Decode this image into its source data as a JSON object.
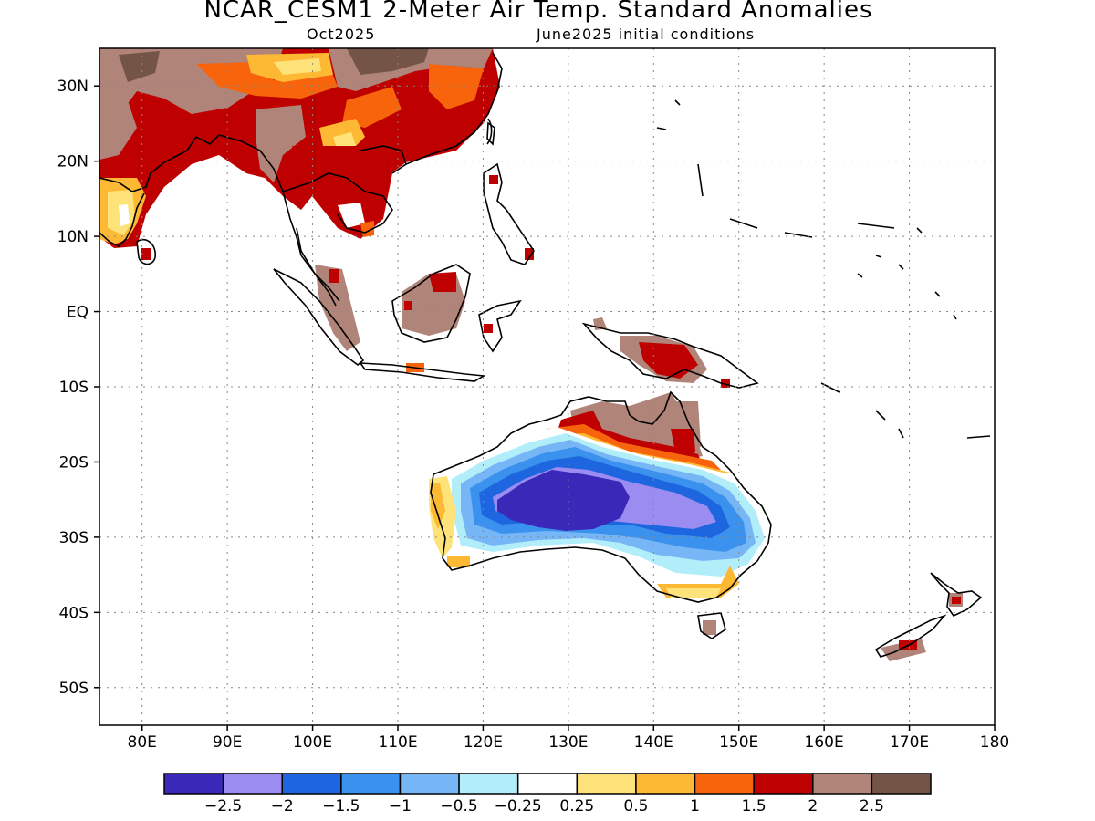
{
  "header": {
    "title": "NCAR_CESM1 2-Meter Air Temp. Standard Anomalies",
    "valid_month": "Oct2025",
    "init": "June2025 initial conditions"
  },
  "map": {
    "lon_range": [
      75,
      180
    ],
    "lat_range": [
      -55,
      35
    ],
    "lon_ticks": [
      {
        "v": 80,
        "label": "80E"
      },
      {
        "v": 90,
        "label": "90E"
      },
      {
        "v": 100,
        "label": "100E"
      },
      {
        "v": 110,
        "label": "110E"
      },
      {
        "v": 120,
        "label": "120E"
      },
      {
        "v": 130,
        "label": "130E"
      },
      {
        "v": 140,
        "label": "140E"
      },
      {
        "v": 150,
        "label": "150E"
      },
      {
        "v": 160,
        "label": "160E"
      },
      {
        "v": 170,
        "label": "170E"
      },
      {
        "v": 180,
        "label": "180"
      }
    ],
    "lat_ticks": [
      {
        "v": 30,
        "label": "30N"
      },
      {
        "v": 20,
        "label": "20N"
      },
      {
        "v": 10,
        "label": "10N"
      },
      {
        "v": 0,
        "label": "EQ"
      },
      {
        "v": -10,
        "label": "10S"
      },
      {
        "v": -20,
        "label": "20S"
      },
      {
        "v": -30,
        "label": "30S"
      },
      {
        "v": -40,
        "label": "40S"
      },
      {
        "v": -50,
        "label": "50S"
      }
    ],
    "grid": "dotted",
    "anomaly_regions": [
      {
        "region": "India / Tibet / South China",
        "max_level": "2 to 2.5+"
      },
      {
        "region": "Indochina",
        "max_level": "1.5 to 2.5"
      },
      {
        "region": "Sumatra / Borneo",
        "max_level": "1.5 to 2.5+"
      },
      {
        "region": "New Guinea",
        "max_level": "1.5 to 2.5"
      },
      {
        "region": "Northern Australia",
        "max_level": "1.5 to 2.5"
      },
      {
        "region": "Central Australia",
        "min_level": "-2.5 or below"
      },
      {
        "region": "Southeast Australia / Tasmania",
        "max_level": "0.25 to 2.5"
      },
      {
        "region": "New Zealand",
        "max_level": "1.5 to 2.5+"
      }
    ]
  },
  "colorbar": {
    "colors": [
      "#3a28b8",
      "#9b8cf2",
      "#1e66e0",
      "#3a92ee",
      "#76b6f6",
      "#b2eefa",
      "#ffffff",
      "#fee27a",
      "#fdb934",
      "#f8640c",
      "#bf0000",
      "#b08478",
      "#735447"
    ],
    "labels": [
      "-2.5",
      "-2",
      "-1.5",
      "-1",
      "-0.5",
      "-0.25",
      "0.25",
      "0.5",
      "1",
      "1.5",
      "2",
      "2.5"
    ]
  }
}
